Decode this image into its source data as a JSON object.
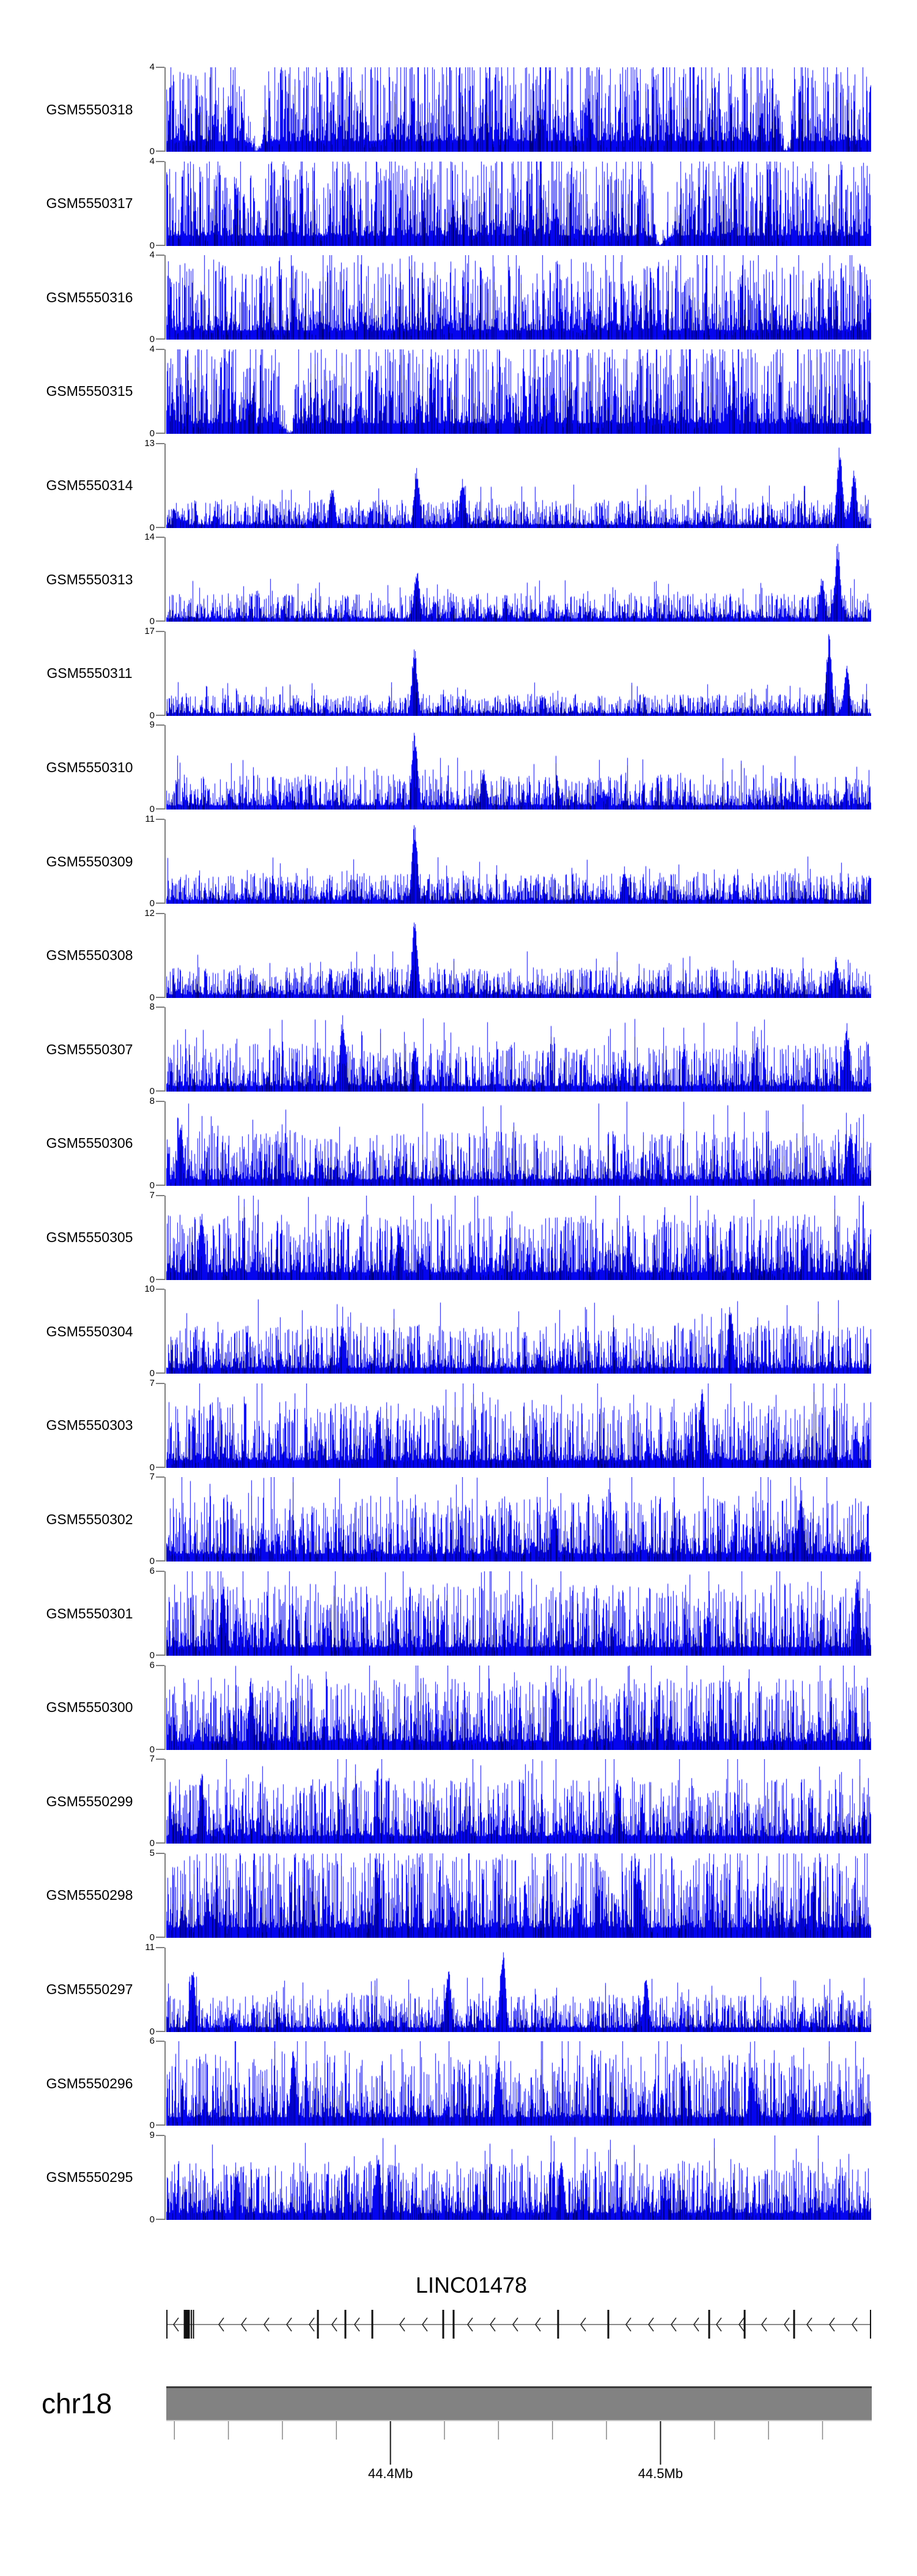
{
  "chart_data": {
    "type": "area",
    "figure_kind": "genome-browser-signal-tracks",
    "region": {
      "chromosome": "chr18",
      "start_mb": 44.317,
      "end_mb": 44.578,
      "unit": "Mb"
    },
    "signal_color": "#0505ee",
    "signal_shade_color": "#000080",
    "axis_color": "#808080",
    "tracks": [
      {
        "label": "GSM5550318",
        "ymax": 4,
        "ymin": 0,
        "base": 0.42,
        "peaks": [],
        "dips": [
          0.128,
          0.879
        ]
      },
      {
        "label": "GSM5550317",
        "ymax": 4,
        "ymin": 0,
        "base": 0.4,
        "peaks": [],
        "dips": [
          0.7
        ]
      },
      {
        "label": "GSM5550316",
        "ymax": 4,
        "ymin": 0,
        "base": 0.36,
        "peaks": [],
        "dips": []
      },
      {
        "label": "GSM5550315",
        "ymax": 4,
        "ymin": 0,
        "base": 0.41,
        "peaks": [],
        "dips": [
          0.174
        ]
      },
      {
        "label": "GSM5550314",
        "ymax": 13,
        "ymin": 0,
        "base": 0.13,
        "peaks": [
          {
            "f": 0.235,
            "h": 0.52
          },
          {
            "f": 0.355,
            "h": 0.75
          },
          {
            "f": 0.42,
            "h": 0.62
          },
          {
            "f": 0.955,
            "h": 1.0
          },
          {
            "f": 0.975,
            "h": 0.72
          }
        ],
        "dips": []
      },
      {
        "label": "GSM5550313",
        "ymax": 14,
        "ymin": 0,
        "base": 0.13,
        "peaks": [
          {
            "f": 0.355,
            "h": 0.67
          },
          {
            "f": 0.93,
            "h": 0.55
          },
          {
            "f": 0.952,
            "h": 0.96
          }
        ],
        "dips": []
      },
      {
        "label": "GSM5550311",
        "ymax": 17,
        "ymin": 0,
        "base": 0.1,
        "peaks": [
          {
            "f": 0.352,
            "h": 0.85
          },
          {
            "f": 0.94,
            "h": 1.0
          },
          {
            "f": 0.965,
            "h": 0.6
          }
        ],
        "dips": []
      },
      {
        "label": "GSM5550310",
        "ymax": 9,
        "ymin": 0,
        "base": 0.16,
        "peaks": [
          {
            "f": 0.352,
            "h": 1.0
          },
          {
            "f": 0.45,
            "h": 0.5
          }
        ],
        "dips": []
      },
      {
        "label": "GSM5550309",
        "ymax": 11,
        "ymin": 0,
        "base": 0.14,
        "peaks": [
          {
            "f": 0.352,
            "h": 1.0
          },
          {
            "f": 0.65,
            "h": 0.45
          }
        ],
        "dips": []
      },
      {
        "label": "GSM5550308",
        "ymax": 12,
        "ymin": 0,
        "base": 0.14,
        "peaks": [
          {
            "f": 0.352,
            "h": 1.0
          },
          {
            "f": 0.95,
            "h": 0.5
          }
        ],
        "dips": []
      },
      {
        "label": "GSM5550307",
        "ymax": 8,
        "ymin": 0,
        "base": 0.22,
        "peaks": [
          {
            "f": 0.25,
            "h": 0.95
          },
          {
            "f": 0.352,
            "h": 0.6
          },
          {
            "f": 0.965,
            "h": 0.85
          }
        ],
        "dips": []
      },
      {
        "label": "GSM5550306",
        "ymax": 8,
        "ymin": 0,
        "base": 0.25,
        "peaks": [
          {
            "f": 0.02,
            "h": 0.8
          },
          {
            "f": 0.97,
            "h": 0.75
          }
        ],
        "dips": []
      },
      {
        "label": "GSM5550305",
        "ymax": 7,
        "ymin": 0,
        "base": 0.3,
        "peaks": [
          {
            "f": 0.05,
            "h": 0.9
          },
          {
            "f": 0.33,
            "h": 0.7
          }
        ],
        "dips": []
      },
      {
        "label": "GSM5550304",
        "ymax": 10,
        "ymin": 0,
        "base": 0.22,
        "peaks": [
          {
            "f": 0.8,
            "h": 0.85
          },
          {
            "f": 0.25,
            "h": 0.6
          }
        ],
        "dips": []
      },
      {
        "label": "GSM5550303",
        "ymax": 7,
        "ymin": 0,
        "base": 0.3,
        "peaks": [
          {
            "f": 0.76,
            "h": 0.95
          },
          {
            "f": 0.3,
            "h": 0.7
          }
        ],
        "dips": []
      },
      {
        "label": "GSM5550302",
        "ymax": 7,
        "ymin": 0,
        "base": 0.3,
        "peaks": [
          {
            "f": 0.9,
            "h": 0.9
          },
          {
            "f": 0.55,
            "h": 0.75
          }
        ],
        "dips": []
      },
      {
        "label": "GSM5550301",
        "ymax": 6,
        "ymin": 0,
        "base": 0.33,
        "peaks": [
          {
            "f": 0.08,
            "h": 0.95
          },
          {
            "f": 0.98,
            "h": 1.0
          }
        ],
        "dips": []
      },
      {
        "label": "GSM5550300",
        "ymax": 6,
        "ymin": 0,
        "base": 0.33,
        "peaks": [
          {
            "f": 0.12,
            "h": 0.9
          },
          {
            "f": 0.55,
            "h": 0.8
          }
        ],
        "dips": []
      },
      {
        "label": "GSM5550299",
        "ymax": 7,
        "ymin": 0,
        "base": 0.3,
        "peaks": [
          {
            "f": 0.05,
            "h": 0.85
          },
          {
            "f": 0.64,
            "h": 0.8
          }
        ],
        "dips": []
      },
      {
        "label": "GSM5550298",
        "ymax": 5,
        "ymin": 0,
        "base": 0.4,
        "peaks": [
          {
            "f": 0.67,
            "h": 0.95
          },
          {
            "f": 0.3,
            "h": 0.8
          }
        ],
        "dips": []
      },
      {
        "label": "GSM5550297",
        "ymax": 11,
        "ymin": 0,
        "base": 0.17,
        "peaks": [
          {
            "f": 0.477,
            "h": 1.0
          },
          {
            "f": 0.037,
            "h": 0.85
          },
          {
            "f": 0.4,
            "h": 0.8
          },
          {
            "f": 0.68,
            "h": 0.65
          }
        ],
        "dips": []
      },
      {
        "label": "GSM5550296",
        "ymax": 6,
        "ymin": 0,
        "base": 0.33,
        "peaks": [
          {
            "f": 0.18,
            "h": 0.95
          },
          {
            "f": 0.47,
            "h": 0.9
          },
          {
            "f": 0.83,
            "h": 0.75
          }
        ],
        "dips": []
      },
      {
        "label": "GSM5550295",
        "ymax": 9,
        "ymin": 0,
        "base": 0.27,
        "peaks": [
          {
            "f": 0.3,
            "h": 0.85
          },
          {
            "f": 0.56,
            "h": 0.8
          },
          {
            "f": 0.1,
            "h": 0.6
          }
        ],
        "dips": []
      }
    ],
    "gene": {
      "name": "LINC01478",
      "strand": "minus",
      "line_color": "#8a8a8a",
      "exon_color": "#111111",
      "exon_marks": [
        {
          "f": 0.0009,
          "w": 2
        },
        {
          "f": 0.0291,
          "w": 10
        },
        {
          "f": 0.0356,
          "w": 2
        },
        {
          "f": 0.0386,
          "w": 2
        },
        {
          "f": 0.2151,
          "w": 3
        },
        {
          "f": 0.2541,
          "w": 3
        },
        {
          "f": 0.2923,
          "w": 3
        },
        {
          "f": 0.3929,
          "w": 3
        },
        {
          "f": 0.4076,
          "w": 3
        },
        {
          "f": 0.5559,
          "w": 3
        },
        {
          "f": 0.6271,
          "w": 3
        },
        {
          "f": 0.7702,
          "w": 3
        },
        {
          "f": 0.8205,
          "w": 3
        },
        {
          "f": 0.8907,
          "w": 3
        },
        {
          "f": 0.9991,
          "w": 2
        }
      ]
    },
    "ideogram": {
      "chromosome": "chr18",
      "color": "#828282"
    },
    "genome_axis": {
      "minor_ticks_mb": [
        44.32,
        44.34,
        44.36,
        44.38,
        44.4,
        44.42,
        44.44,
        44.46,
        44.48,
        44.5,
        44.52,
        44.54,
        44.56
      ],
      "major_ticks": [
        {
          "mb": 44.4,
          "label": "44.4Mb"
        },
        {
          "mb": 44.5,
          "label": "44.5Mb"
        }
      ],
      "minor_color": "#888888",
      "major_color": "#1a1a1a"
    }
  }
}
